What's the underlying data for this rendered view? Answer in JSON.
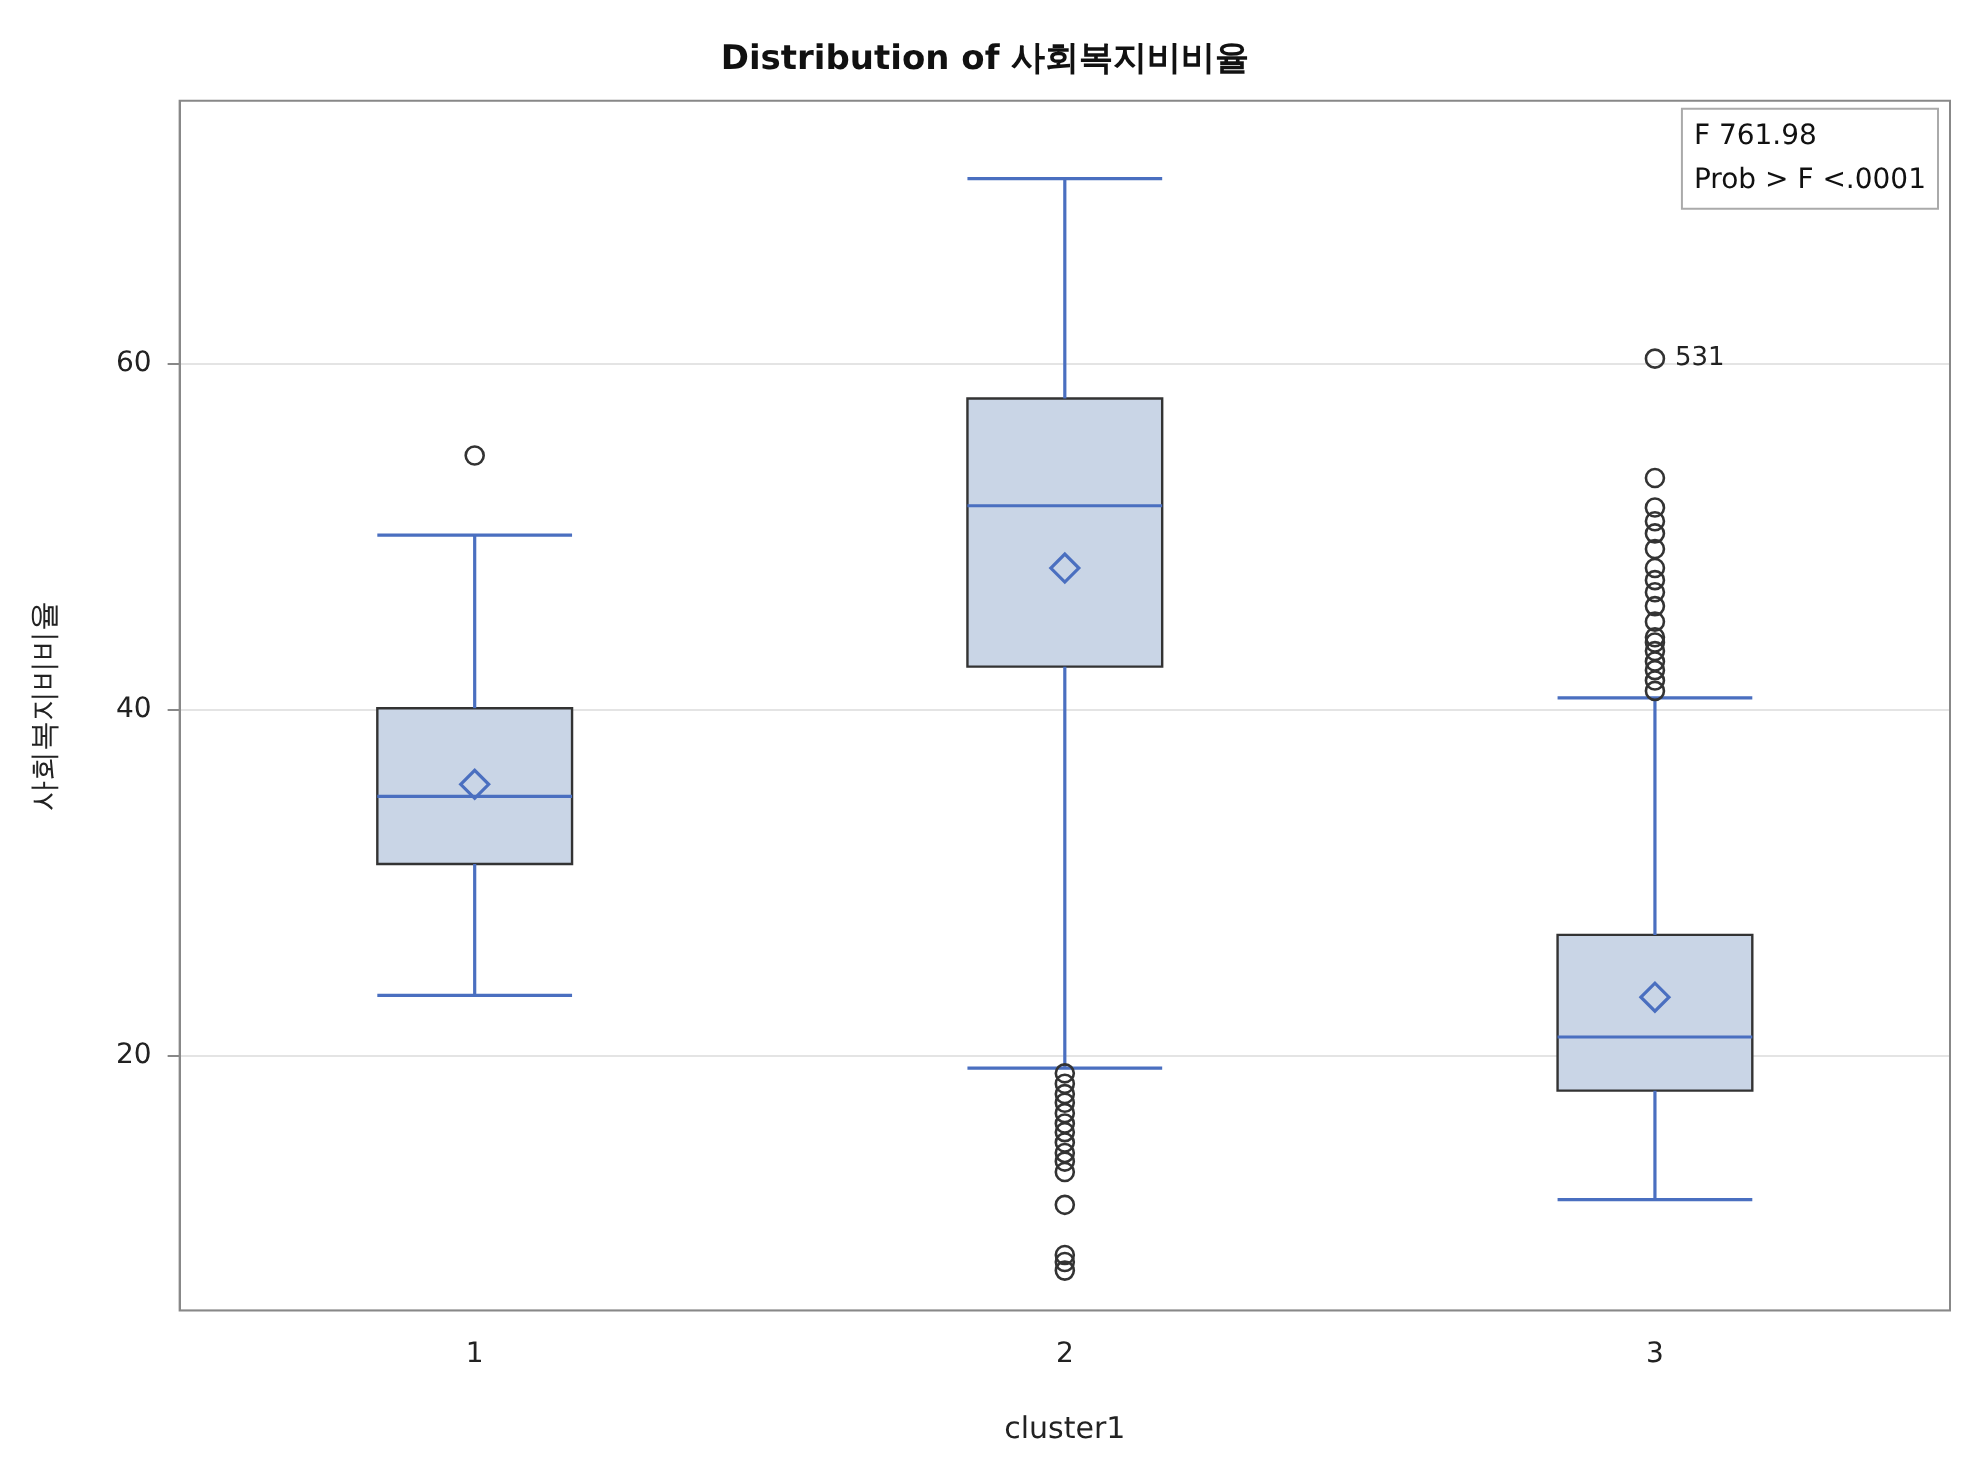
{
  "chart_data": {
    "type": "box",
    "title": "Distribution of 사회복지비비율",
    "xlabel": "cluster1",
    "ylabel": "사회복지비비율",
    "categories": [
      "1",
      "2",
      "3"
    ],
    "boxes": [
      {
        "low": 23.5,
        "q1": 31.1,
        "median": 35.0,
        "q3": 40.1,
        "high": 50.1,
        "mean": 35.7,
        "outliers": [
          54.7
        ]
      },
      {
        "low": 19.3,
        "q1": 42.5,
        "median": 51.8,
        "q3": 58.0,
        "high": 70.7,
        "mean": 48.2,
        "outliers": [
          19.0,
          18.4,
          17.8,
          17.3,
          16.7,
          16.1,
          15.6,
          15.0,
          14.4,
          13.9,
          13.3,
          11.4,
          8.5,
          8.1,
          7.6
        ]
      },
      {
        "low": 11.7,
        "q1": 18.0,
        "median": 21.1,
        "q3": 27.0,
        "high": 40.7,
        "mean": 23.4,
        "outliers": [
          60.3,
          53.4,
          51.7,
          50.9,
          50.2,
          49.3,
          48.2,
          47.5,
          46.8,
          46.0,
          45.1,
          44.2,
          43.9,
          43.4,
          42.8,
          42.3,
          41.7,
          41.1
        ]
      }
    ],
    "color": "#c9d5e6",
    "ylim": [
      5.3,
      75.2
    ],
    "yticks": [
      20,
      40,
      60
    ],
    "grid": "y",
    "legend": false,
    "annotations": [
      "531",
      "F 761.98",
      "Prob > F <.0001"
    ]
  }
}
